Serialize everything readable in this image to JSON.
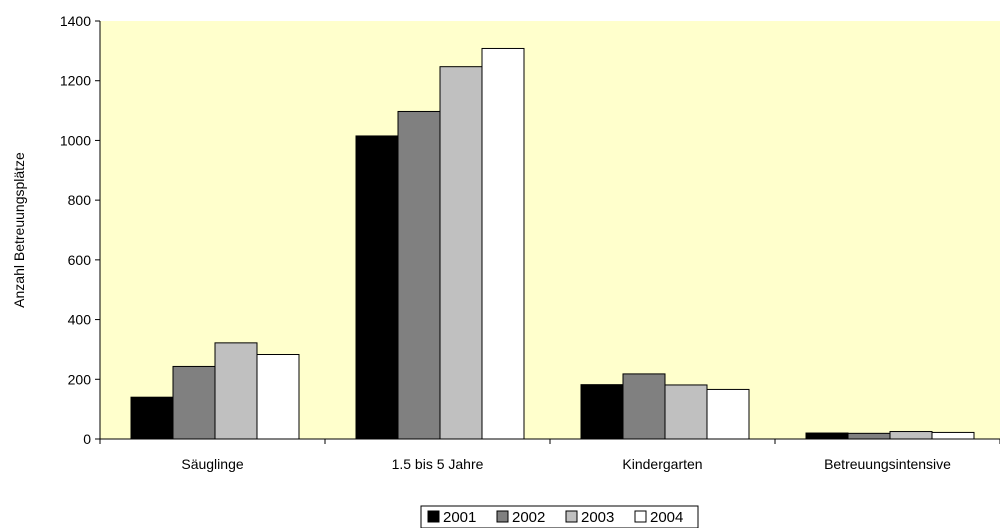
{
  "chart_data": {
    "type": "bar",
    "categories": [
      "Säuglinge",
      "1.5 bis 5 Jahre",
      "Kindergarten",
      "Betreuungsintensive"
    ],
    "series": [
      {
        "name": "2001",
        "values": [
          140,
          1015,
          182,
          20
        ],
        "color": "#000000"
      },
      {
        "name": "2002",
        "values": [
          243,
          1097,
          218,
          19
        ],
        "color": "#808080"
      },
      {
        "name": "2003",
        "values": [
          322,
          1247,
          181,
          25
        ],
        "color": "#c0c0c0"
      },
      {
        "name": "2004",
        "values": [
          283,
          1308,
          166,
          22
        ],
        "color": "#ffffff"
      }
    ],
    "ylabel": "Anzahl Betreuungsplätze",
    "ylim": [
      0,
      1400
    ],
    "yticks": [
      "0",
      "200",
      "400",
      "600",
      "800",
      "1000",
      "1200",
      "1400"
    ],
    "grid": false,
    "legend_position": "bottom",
    "plot_background": "#ffffcc"
  }
}
